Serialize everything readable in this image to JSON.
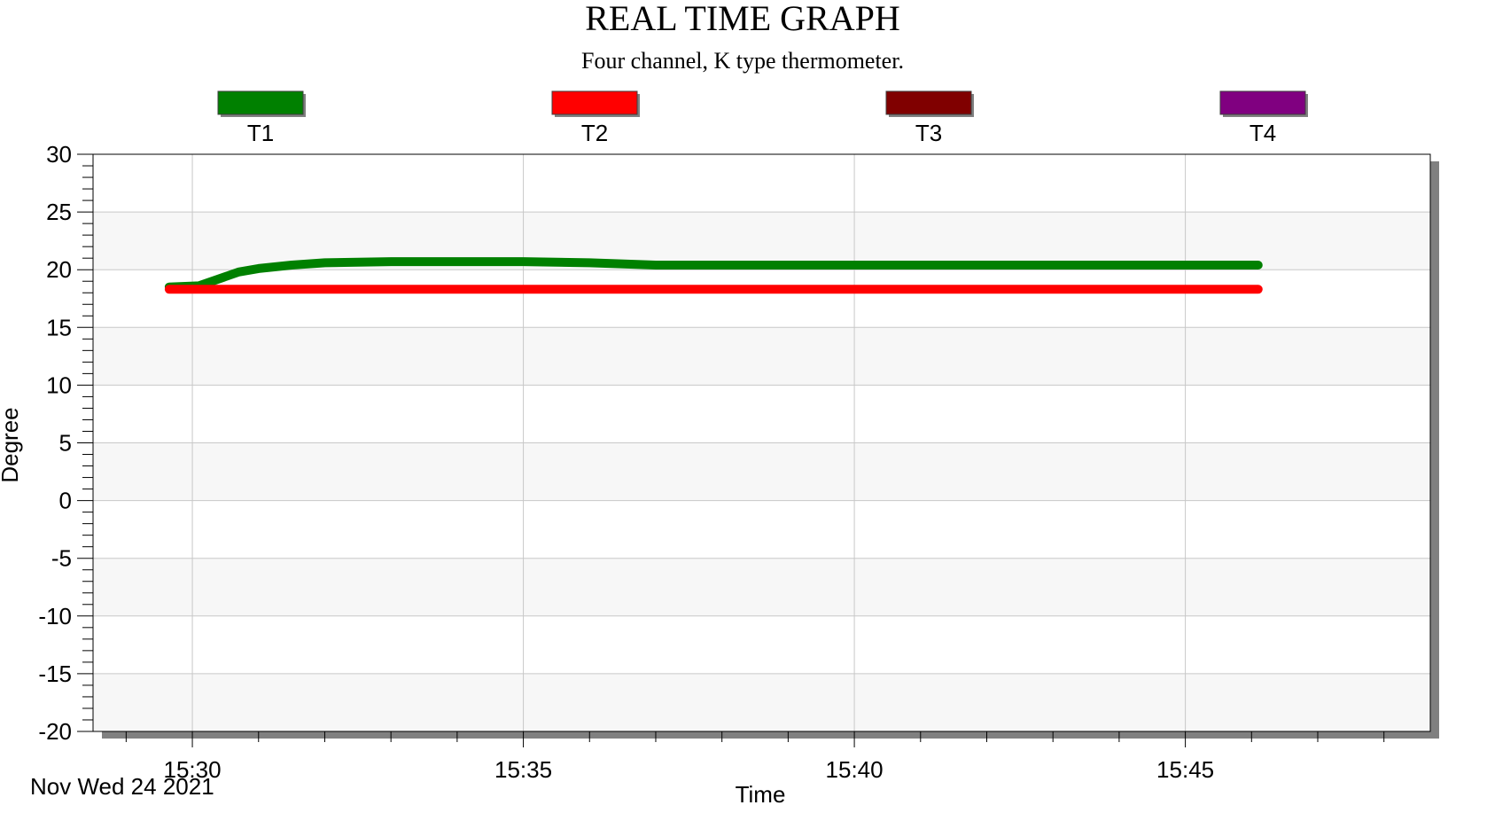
{
  "chart_data": {
    "type": "line",
    "title": "REAL TIME GRAPH",
    "subtitle": "Four channel, K type thermometer.",
    "xlabel": "Time",
    "ylabel": "Degree",
    "date_label": "Nov Wed 24 2021",
    "x_unit": "minutes",
    "xlim": [
      "15:28.5",
      "15:48.7"
    ],
    "ylim": [
      -20,
      30
    ],
    "y_ticks": [
      "30",
      "25",
      "20",
      "15",
      "10",
      "5",
      "0",
      "-5",
      "-10",
      "-15",
      "-20"
    ],
    "x_ticks": [
      "15:30",
      "15:35",
      "15:40",
      "15:45"
    ],
    "grid": true,
    "legend_position": "top",
    "series": [
      {
        "name": "T1",
        "color": "#008000",
        "x": [
          "15:29.65",
          "15:30.1",
          "15:30.4",
          "15:30.7",
          "15:31.0",
          "15:31.5",
          "15:32.0",
          "15:33.0",
          "15:35.0",
          "15:36.0",
          "15:37.0",
          "15:40.0",
          "15:46.1"
        ],
        "y": [
          18.5,
          18.6,
          19.2,
          19.8,
          20.1,
          20.4,
          20.6,
          20.7,
          20.7,
          20.6,
          20.4,
          20.4,
          20.4
        ]
      },
      {
        "name": "T2",
        "color": "#ff0000",
        "x": [
          "15:29.65",
          "15:30.5",
          "15:32.0",
          "15:35.0",
          "15:40.0",
          "15:46.1"
        ],
        "y": [
          18.3,
          18.3,
          18.3,
          18.3,
          18.3,
          18.3
        ]
      },
      {
        "name": "T3",
        "color": "#800000",
        "x": [],
        "y": []
      },
      {
        "name": "T4",
        "color": "#800080",
        "x": [],
        "y": []
      }
    ]
  }
}
